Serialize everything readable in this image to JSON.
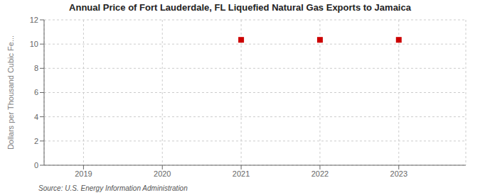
{
  "chart_data": {
    "type": "scatter",
    "title": "Annual Price of Fort Lauderdale, FL Liquefied Natural Gas Exports to Jamaica",
    "ylabel": "Dollars per Thousand Cubic Fe...",
    "annotations": [
      "Source: U.S. Energy Information Administration"
    ],
    "x": [
      2021,
      2022,
      2023
    ],
    "values": [
      10.35,
      10.35,
      10.35
    ],
    "color": "#cc0000",
    "marker": "square",
    "xlim": [
      2018.5,
      2023.85
    ],
    "xticks": [
      2019,
      2020,
      2021,
      2022,
      2023
    ],
    "ylim": [
      0,
      12
    ],
    "yticks": [
      0,
      2,
      4,
      6,
      8,
      10,
      12
    ],
    "grid": true
  }
}
